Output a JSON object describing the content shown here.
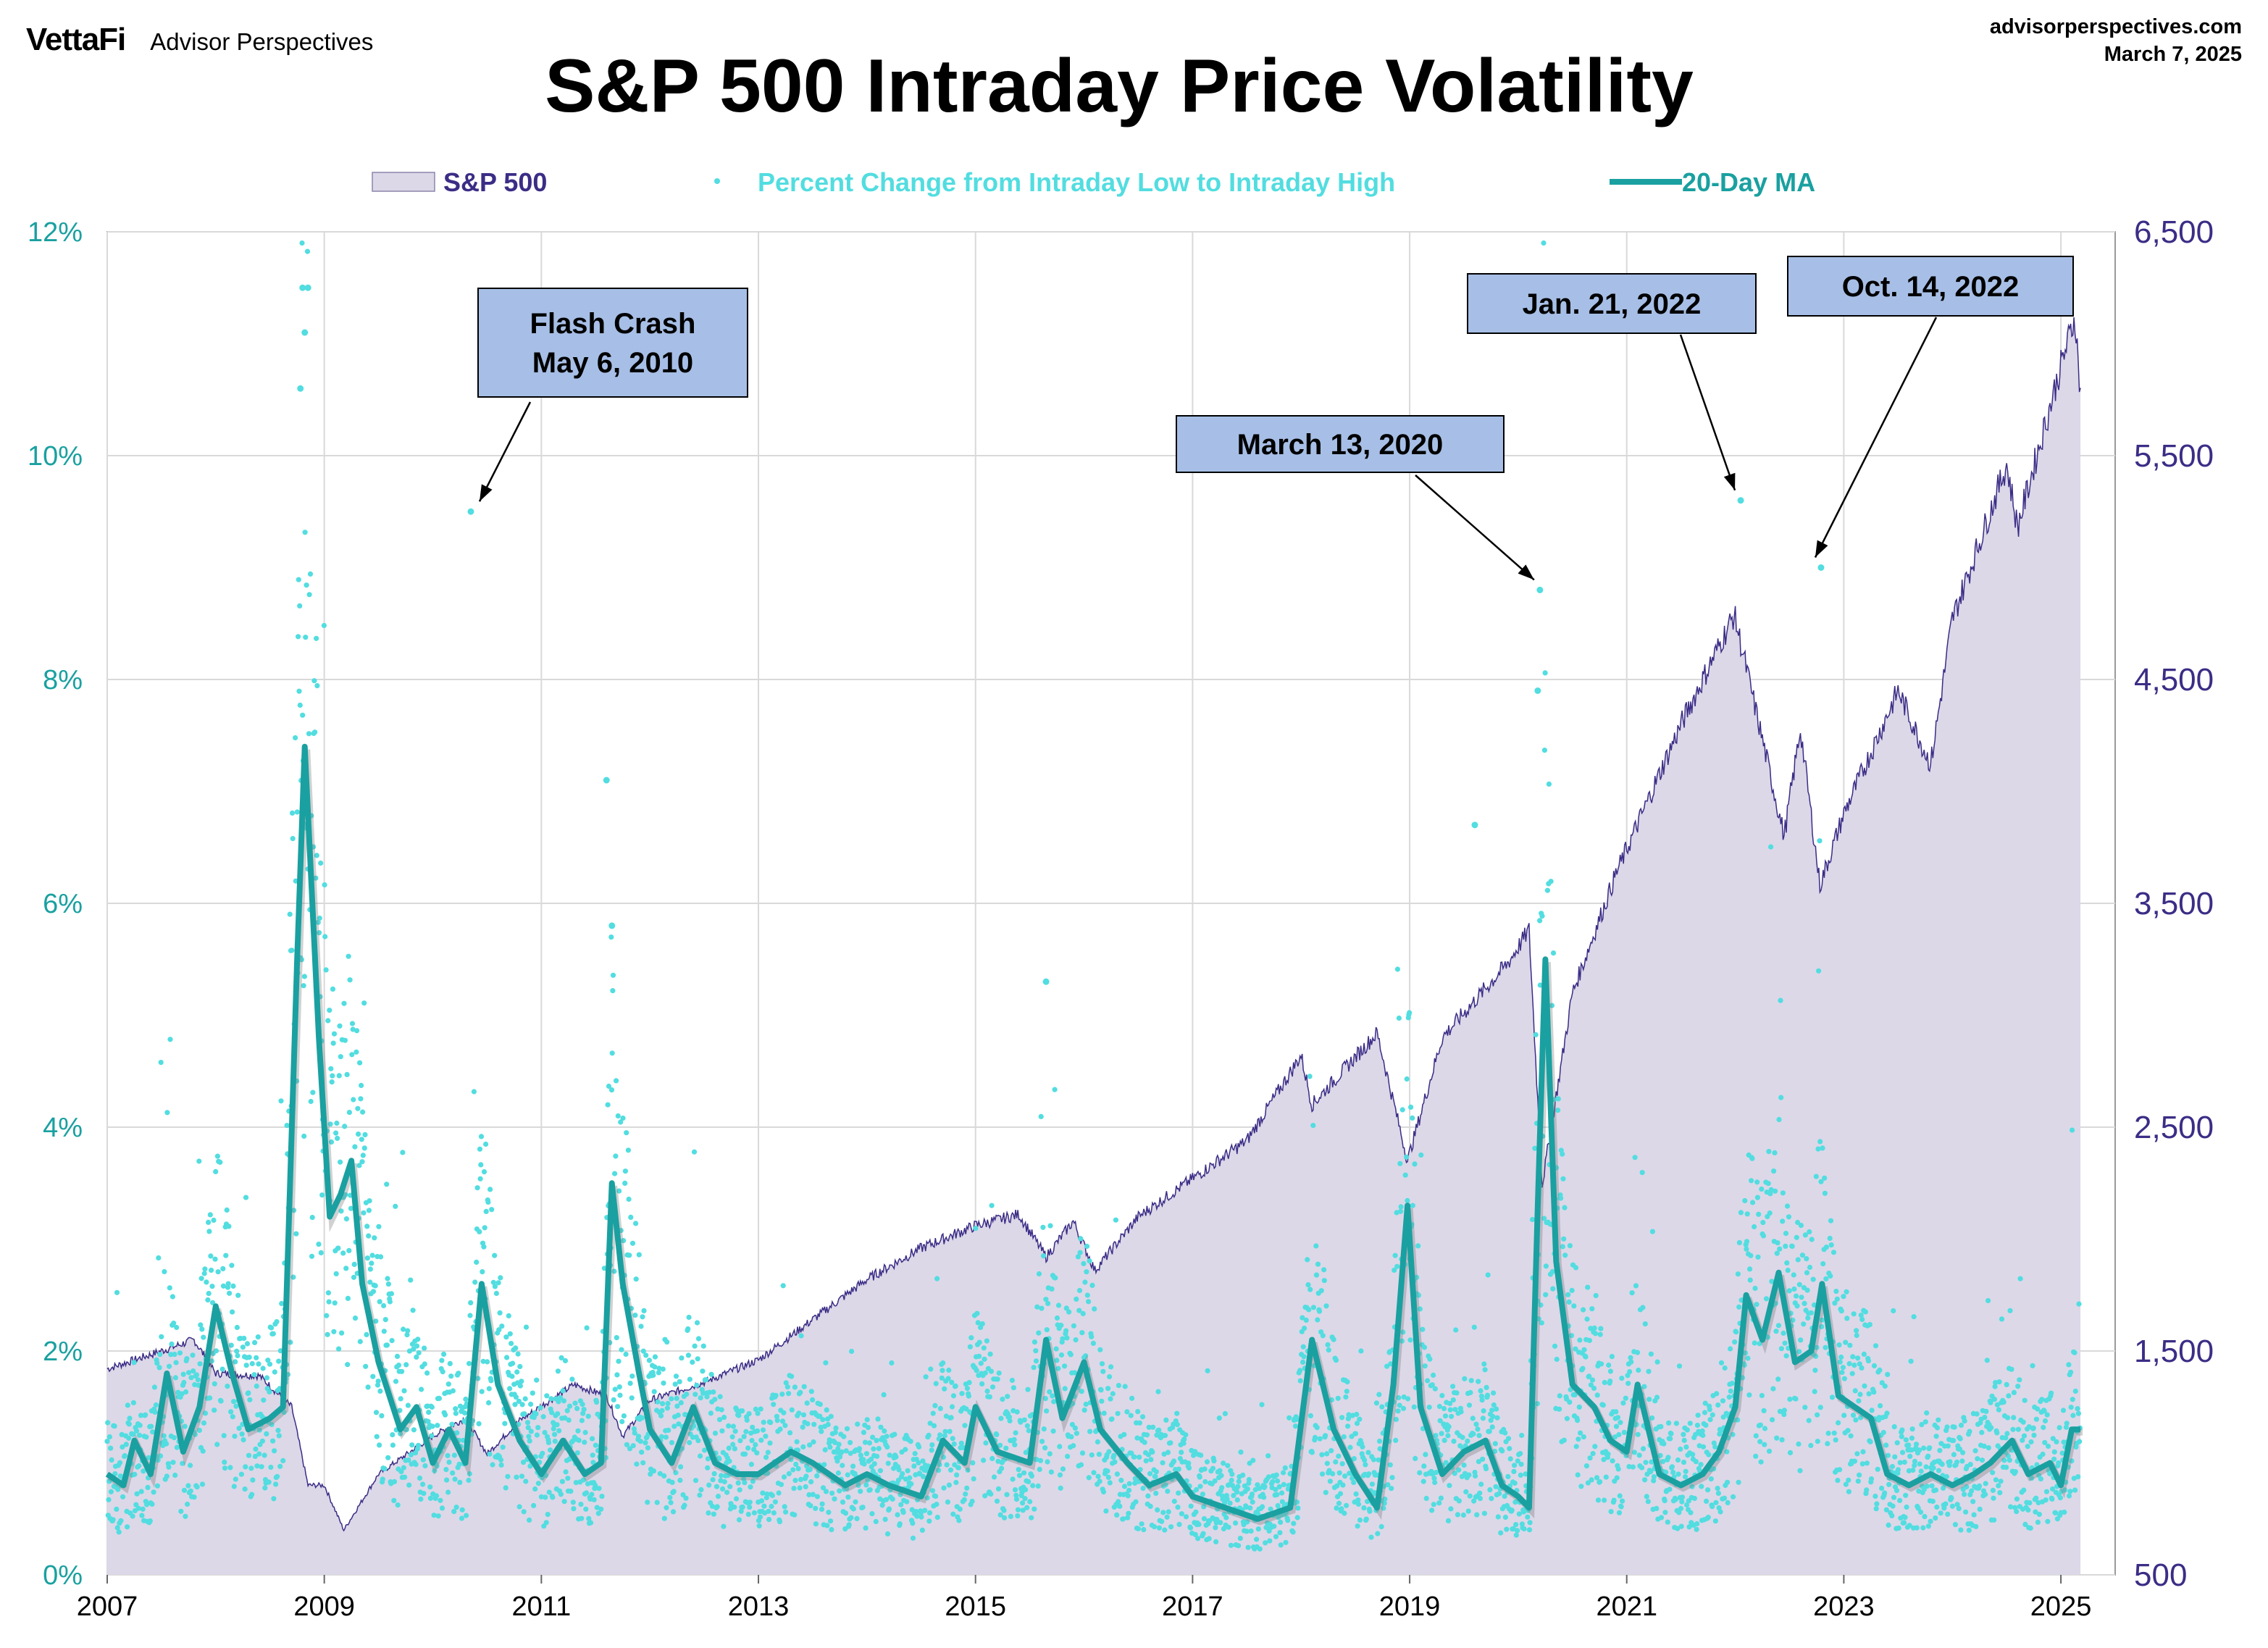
{
  "header": {
    "brand": "VettaFi",
    "brand_sub": "Advisor Perspectives",
    "site": "advisorperspectives.com",
    "date": "March 7, 2025"
  },
  "colors": {
    "area_fill": "#dcd8e8",
    "area_line": "#3b2d86",
    "dots": "#52dde0",
    "ma": "#1aa0a0",
    "left_axis": "#1aa0a0",
    "right_axis": "#3b2d86",
    "annotation": "#a7bfe6"
  },
  "chart_data": {
    "type": "area+scatter+line",
    "title": "S&P 500 Intraday Price Volatility",
    "legend": [
      {
        "label": "S&P 500",
        "marker": "area"
      },
      {
        "label": "Percent Change from Intraday Low to Intraday High",
        "marker": "dot"
      },
      {
        "label": "20-Day MA",
        "marker": "line"
      }
    ],
    "x_ticks": [
      "2007",
      "2009",
      "2011",
      "2013",
      "2015",
      "2017",
      "2019",
      "2021",
      "2023",
      "2025"
    ],
    "x_range": [
      2007.0,
      2025.5
    ],
    "left_axis": {
      "range": [
        0,
        12
      ],
      "ticks": [
        "0%",
        "2%",
        "4%",
        "6%",
        "8%",
        "10%",
        "12%"
      ]
    },
    "right_axis": {
      "range": [
        500,
        6500
      ],
      "ticks": [
        "500",
        "1,500",
        "2,500",
        "3,500",
        "4,500",
        "5,500",
        "6,500"
      ]
    },
    "grid": true,
    "sp500": [
      [
        2007.0,
        1420
      ],
      [
        2007.5,
        1500
      ],
      [
        2007.8,
        1550
      ],
      [
        2008.0,
        1400
      ],
      [
        2008.4,
        1390
      ],
      [
        2008.7,
        1250
      ],
      [
        2008.85,
        900
      ],
      [
        2009.0,
        900
      ],
      [
        2009.18,
        700
      ],
      [
        2009.5,
        950
      ],
      [
        2010.0,
        1120
      ],
      [
        2010.3,
        1200
      ],
      [
        2010.5,
        1040
      ],
      [
        2010.8,
        1190
      ],
      [
        2011.3,
        1350
      ],
      [
        2011.6,
        1300
      ],
      [
        2011.75,
        1120
      ],
      [
        2012.0,
        1280
      ],
      [
        2012.5,
        1360
      ],
      [
        2013.0,
        1460
      ],
      [
        2013.5,
        1640
      ],
      [
        2014.0,
        1820
      ],
      [
        2014.5,
        1960
      ],
      [
        2015.0,
        2060
      ],
      [
        2015.4,
        2110
      ],
      [
        2015.65,
        1920
      ],
      [
        2015.9,
        2080
      ],
      [
        2016.1,
        1860
      ],
      [
        2016.5,
        2100
      ],
      [
        2017.0,
        2270
      ],
      [
        2017.5,
        2440
      ],
      [
        2018.0,
        2820
      ],
      [
        2018.1,
        2600
      ],
      [
        2018.7,
        2920
      ],
      [
        2018.98,
        2350
      ],
      [
        2019.3,
        2900
      ],
      [
        2019.9,
        3230
      ],
      [
        2020.1,
        3380
      ],
      [
        2020.22,
        2240
      ],
      [
        2020.5,
        3100
      ],
      [
        2020.9,
        3630
      ],
      [
        2021.5,
        4300
      ],
      [
        2021.99,
        4790
      ],
      [
        2022.45,
        3800
      ],
      [
        2022.6,
        4280
      ],
      [
        2022.78,
        3580
      ],
      [
        2023.0,
        3900
      ],
      [
        2023.5,
        4450
      ],
      [
        2023.8,
        4120
      ],
      [
        2024.0,
        4770
      ],
      [
        2024.5,
        5460
      ],
      [
        2024.6,
        5180
      ],
      [
        2025.0,
        5900
      ],
      [
        2025.13,
        6120
      ],
      [
        2025.18,
        5770
      ]
    ],
    "ma_20day": [
      [
        2007.0,
        0.9
      ],
      [
        2007.15,
        0.8
      ],
      [
        2007.25,
        1.2
      ],
      [
        2007.4,
        0.9
      ],
      [
        2007.55,
        1.8
      ],
      [
        2007.7,
        1.1
      ],
      [
        2007.85,
        1.5
      ],
      [
        2008.0,
        2.4
      ],
      [
        2008.15,
        1.8
      ],
      [
        2008.3,
        1.3
      ],
      [
        2008.5,
        1.4
      ],
      [
        2008.62,
        1.5
      ],
      [
        2008.75,
        5.5
      ],
      [
        2008.82,
        7.4
      ],
      [
        2008.88,
        6.2
      ],
      [
        2008.95,
        4.8
      ],
      [
        2009.05,
        3.2
      ],
      [
        2009.15,
        3.4
      ],
      [
        2009.25,
        3.7
      ],
      [
        2009.35,
        2.6
      ],
      [
        2009.5,
        1.9
      ],
      [
        2009.7,
        1.3
      ],
      [
        2009.85,
        1.5
      ],
      [
        2010.0,
        1.0
      ],
      [
        2010.15,
        1.3
      ],
      [
        2010.3,
        1.0
      ],
      [
        2010.45,
        2.6
      ],
      [
        2010.6,
        1.7
      ],
      [
        2010.8,
        1.2
      ],
      [
        2011.0,
        0.9
      ],
      [
        2011.2,
        1.2
      ],
      [
        2011.4,
        0.9
      ],
      [
        2011.55,
        1.0
      ],
      [
        2011.65,
        3.5
      ],
      [
        2011.75,
        2.6
      ],
      [
        2011.9,
        1.8
      ],
      [
        2012.0,
        1.3
      ],
      [
        2012.2,
        1.0
      ],
      [
        2012.4,
        1.5
      ],
      [
        2012.6,
        1.0
      ],
      [
        2012.8,
        0.9
      ],
      [
        2013.0,
        0.9
      ],
      [
        2013.3,
        1.1
      ],
      [
        2013.5,
        1.0
      ],
      [
        2013.8,
        0.8
      ],
      [
        2014.0,
        0.9
      ],
      [
        2014.2,
        0.8
      ],
      [
        2014.5,
        0.7
      ],
      [
        2014.7,
        1.2
      ],
      [
        2014.9,
        1.0
      ],
      [
        2015.0,
        1.5
      ],
      [
        2015.2,
        1.1
      ],
      [
        2015.5,
        1.0
      ],
      [
        2015.65,
        2.1
      ],
      [
        2015.8,
        1.4
      ],
      [
        2016.0,
        1.9
      ],
      [
        2016.15,
        1.3
      ],
      [
        2016.4,
        1.0
      ],
      [
        2016.6,
        0.8
      ],
      [
        2016.85,
        0.9
      ],
      [
        2017.0,
        0.7
      ],
      [
        2017.3,
        0.6
      ],
      [
        2017.6,
        0.5
      ],
      [
        2017.9,
        0.6
      ],
      [
        2018.1,
        2.1
      ],
      [
        2018.3,
        1.3
      ],
      [
        2018.5,
        0.9
      ],
      [
        2018.7,
        0.6
      ],
      [
        2018.85,
        1.7
      ],
      [
        2018.98,
        3.3
      ],
      [
        2019.1,
        1.5
      ],
      [
        2019.3,
        0.9
      ],
      [
        2019.5,
        1.1
      ],
      [
        2019.7,
        1.2
      ],
      [
        2019.85,
        0.8
      ],
      [
        2020.0,
        0.7
      ],
      [
        2020.1,
        0.6
      ],
      [
        2020.18,
        3.3
      ],
      [
        2020.25,
        5.5
      ],
      [
        2020.35,
        2.8
      ],
      [
        2020.5,
        1.7
      ],
      [
        2020.7,
        1.5
      ],
      [
        2020.85,
        1.2
      ],
      [
        2021.0,
        1.1
      ],
      [
        2021.1,
        1.7
      ],
      [
        2021.3,
        0.9
      ],
      [
        2021.5,
        0.8
      ],
      [
        2021.7,
        0.9
      ],
      [
        2021.85,
        1.1
      ],
      [
        2022.0,
        1.5
      ],
      [
        2022.1,
        2.5
      ],
      [
        2022.25,
        2.1
      ],
      [
        2022.4,
        2.7
      ],
      [
        2022.55,
        1.9
      ],
      [
        2022.7,
        2.0
      ],
      [
        2022.8,
        2.6
      ],
      [
        2022.95,
        1.6
      ],
      [
        2023.1,
        1.5
      ],
      [
        2023.25,
        1.4
      ],
      [
        2023.4,
        0.9
      ],
      [
        2023.6,
        0.8
      ],
      [
        2023.8,
        0.9
      ],
      [
        2024.0,
        0.8
      ],
      [
        2024.2,
        0.9
      ],
      [
        2024.35,
        1.0
      ],
      [
        2024.55,
        1.2
      ],
      [
        2024.7,
        0.9
      ],
      [
        2024.9,
        1.0
      ],
      [
        2025.0,
        0.8
      ],
      [
        2025.1,
        1.3
      ],
      [
        2025.18,
        1.3
      ]
    ],
    "daily_range_highlights": [
      [
        2008.8,
        11.5
      ],
      [
        2008.85,
        11.5
      ],
      [
        2008.82,
        11.1
      ],
      [
        2008.78,
        10.6
      ],
      [
        2010.35,
        9.5
      ],
      [
        2011.6,
        7.1
      ],
      [
        2019.6,
        6.7
      ],
      [
        2020.2,
        8.8
      ],
      [
        2020.18,
        7.9
      ],
      [
        2022.05,
        9.6
      ],
      [
        2022.79,
        9.0
      ],
      [
        2015.65,
        5.3
      ],
      [
        2011.65,
        5.8
      ]
    ],
    "annotations": [
      {
        "line1": "Flash Crash",
        "line2": "May 6, 2010",
        "x": 2010.35,
        "y": 9.5
      },
      {
        "line1": "March 13, 2020",
        "x": 2020.2,
        "y": 8.8
      },
      {
        "line1": "Jan. 21, 2022",
        "x": 2022.05,
        "y": 9.6
      },
      {
        "line1": "Oct. 14, 2022",
        "x": 2022.79,
        "y": 9.0
      }
    ]
  }
}
